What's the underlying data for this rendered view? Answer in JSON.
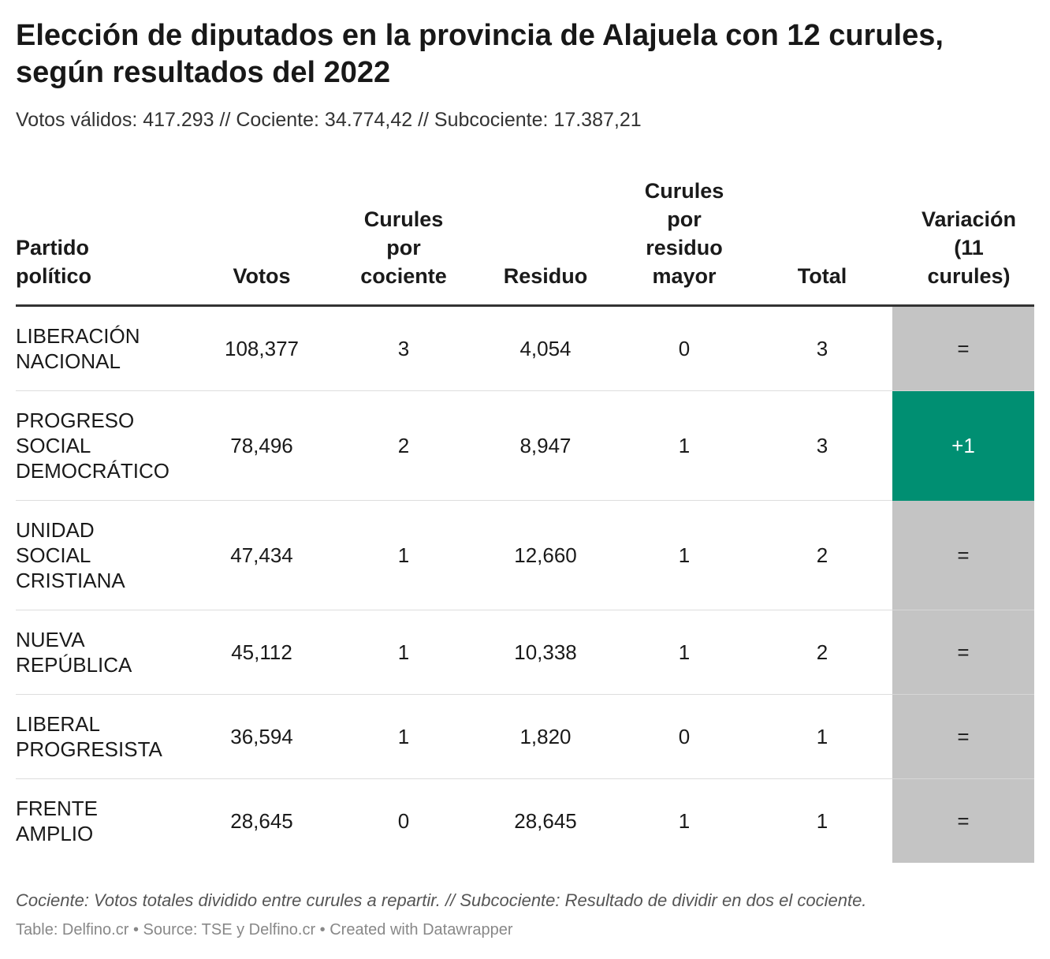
{
  "chart_data": {
    "type": "table",
    "title": "Elección de diputados en la provincia de Alajuela con 12 curules, según resultados del 2022",
    "subtitle": "Votos válidos: 417.293 // Cociente: 34.774,42 // Subcociente: 17.387,21",
    "columns": [
      "Partido político",
      "Votos",
      "Curules por cociente",
      "Residuo",
      "Curules por residuo mayor",
      "Total",
      "Variación (11 curules)"
    ],
    "rows": [
      {
        "party": "LIBERACIÓN NACIONAL",
        "votos": "108,377",
        "cociente": "3",
        "residuo": "4,054",
        "residuo_mayor": "0",
        "total": "3",
        "variacion": "="
      },
      {
        "party": "PROGRESO SOCIAL DEMOCRÁTICO",
        "votos": "78,496",
        "cociente": "2",
        "residuo": "8,947",
        "residuo_mayor": "1",
        "total": "3",
        "variacion": "+1"
      },
      {
        "party": "UNIDAD SOCIAL CRISTIANA",
        "votos": "47,434",
        "cociente": "1",
        "residuo": "12,660",
        "residuo_mayor": "1",
        "total": "2",
        "variacion": "="
      },
      {
        "party": "NUEVA REPÚBLICA",
        "votos": "45,112",
        "cociente": "1",
        "residuo": "10,338",
        "residuo_mayor": "1",
        "total": "2",
        "variacion": "="
      },
      {
        "party": "LIBERAL PROGRESISTA",
        "votos": "36,594",
        "cociente": "1",
        "residuo": "1,820",
        "residuo_mayor": "0",
        "total": "1",
        "variacion": "="
      },
      {
        "party": "FRENTE AMPLIO",
        "votos": "28,645",
        "cociente": "0",
        "residuo": "28,645",
        "residuo_mayor": "1",
        "total": "1",
        "variacion": "="
      }
    ],
    "variation_colors": {
      "=": "#c4c4c4",
      "+1": "#008f72"
    },
    "variation_text_colors": {
      "=": "#1a1a1a",
      "+1": "#ffffff"
    },
    "footnote": "Cociente: Votos totales dividido entre curules a repartir. // Subcociente: Resultado de dividir en dos el cociente.",
    "source_line": "Table: Delfino.cr • Source: TSE y Delfino.cr • Created with Datawrapper"
  }
}
